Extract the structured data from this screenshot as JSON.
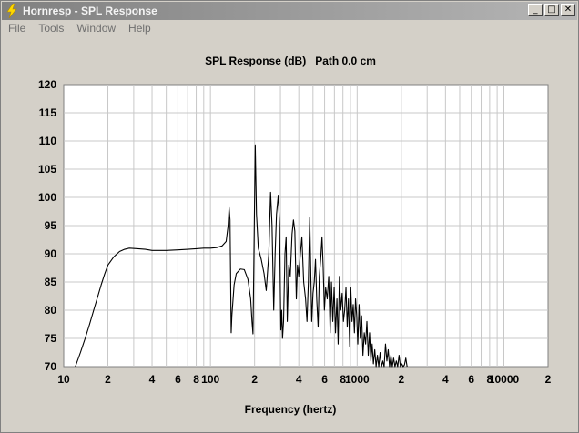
{
  "window": {
    "title": "Hornresp - SPL Response",
    "minimize_glyph": "_",
    "maximize_glyph": "□",
    "close_glyph": "✕"
  },
  "menu": [
    {
      "label": "File"
    },
    {
      "label": "Tools"
    },
    {
      "label": "Window"
    },
    {
      "label": "Help"
    }
  ],
  "icons": {
    "app": "lightning-bolt-icon"
  },
  "colors": {
    "plot_background": "#ffffff",
    "grid": "#c8c8c8",
    "trace": "#000000",
    "titlebar": "#a0a0a0"
  },
  "chart_data": {
    "type": "line",
    "title": "SPL Response (dB)   Path 0.0 cm",
    "xlabel": "Frequency (hertz)",
    "ylabel": "",
    "x_scale": "log",
    "xlim": [
      10,
      20000
    ],
    "ylim": [
      70,
      120
    ],
    "grid": true,
    "x_ticks": [
      {
        "value": 10,
        "label": "10"
      },
      {
        "value": 20,
        "label": "2"
      },
      {
        "value": 40,
        "label": "4"
      },
      {
        "value": 60,
        "label": "6"
      },
      {
        "value": 80,
        "label": "8"
      },
      {
        "value": 100,
        "label": "100"
      },
      {
        "value": 200,
        "label": "2"
      },
      {
        "value": 400,
        "label": "4"
      },
      {
        "value": 600,
        "label": "6"
      },
      {
        "value": 800,
        "label": "8"
      },
      {
        "value": 1000,
        "label": "1000"
      },
      {
        "value": 2000,
        "label": "2"
      },
      {
        "value": 4000,
        "label": "4"
      },
      {
        "value": 6000,
        "label": "6"
      },
      {
        "value": 8000,
        "label": "8"
      },
      {
        "value": 10000,
        "label": "10000"
      },
      {
        "value": 20000,
        "label": "2"
      }
    ],
    "y_ticks": [
      120,
      115,
      110,
      105,
      100,
      95,
      90,
      85,
      80,
      75,
      70
    ],
    "series": [
      {
        "points": [
          [
            12,
            70
          ],
          [
            13,
            72.5
          ],
          [
            14,
            75
          ],
          [
            15,
            77.5
          ],
          [
            16,
            80
          ],
          [
            17,
            82.3
          ],
          [
            18,
            84.5
          ],
          [
            19,
            86.4
          ],
          [
            20,
            88
          ],
          [
            22,
            89.5
          ],
          [
            24,
            90.4
          ],
          [
            26,
            90.8
          ],
          [
            28,
            91
          ],
          [
            32,
            90.9
          ],
          [
            36,
            90.8
          ],
          [
            40,
            90.6
          ],
          [
            50,
            90.6
          ],
          [
            60,
            90.7
          ],
          [
            70,
            90.8
          ],
          [
            80,
            90.9
          ],
          [
            90,
            91
          ],
          [
            100,
            91
          ],
          [
            110,
            91.1
          ],
          [
            120,
            91.4
          ],
          [
            128,
            92.2
          ],
          [
            132,
            95
          ],
          [
            134,
            98.2
          ],
          [
            136,
            96
          ],
          [
            137.5,
            84
          ],
          [
            138.5,
            76
          ],
          [
            140,
            79
          ],
          [
            145,
            84.5
          ],
          [
            150,
            86.5
          ],
          [
            160,
            87.3
          ],
          [
            170,
            87.2
          ],
          [
            180,
            85.5
          ],
          [
            188,
            82
          ],
          [
            192,
            78
          ],
          [
            195,
            75.8
          ],
          [
            198,
            90
          ],
          [
            202,
            109.3
          ],
          [
            206,
            97
          ],
          [
            212,
            91
          ],
          [
            222,
            89
          ],
          [
            232,
            86.5
          ],
          [
            240,
            83.5
          ],
          [
            250,
            90
          ],
          [
            257,
            100.9
          ],
          [
            263,
            95
          ],
          [
            270,
            80
          ],
          [
            276,
            90
          ],
          [
            282,
            97
          ],
          [
            290,
            100.4
          ],
          [
            296,
            95
          ],
          [
            300,
            82
          ],
          [
            302,
            76.5
          ],
          [
            306,
            80
          ],
          [
            310,
            75
          ],
          [
            315,
            78
          ],
          [
            322,
            90
          ],
          [
            328,
            93
          ],
          [
            334,
            78
          ],
          [
            342,
            88
          ],
          [
            350,
            86
          ],
          [
            360,
            93.5
          ],
          [
            368,
            96
          ],
          [
            376,
            94
          ],
          [
            385,
            82
          ],
          [
            392,
            88
          ],
          [
            400,
            86
          ],
          [
            410,
            90
          ],
          [
            420,
            93
          ],
          [
            432,
            85
          ],
          [
            445,
            82
          ],
          [
            455,
            78
          ],
          [
            465,
            85
          ],
          [
            475,
            96.5
          ],
          [
            482,
            88
          ],
          [
            490,
            78
          ],
          [
            500,
            83
          ],
          [
            510,
            85
          ],
          [
            520,
            89
          ],
          [
            530,
            82
          ],
          [
            542,
            77
          ],
          [
            552,
            86
          ],
          [
            564,
            89
          ],
          [
            576,
            93
          ],
          [
            586,
            88
          ],
          [
            598,
            80
          ],
          [
            610,
            84
          ],
          [
            625,
            82
          ],
          [
            640,
            86
          ],
          [
            655,
            76
          ],
          [
            668,
            85
          ],
          [
            682,
            78
          ],
          [
            697,
            84
          ],
          [
            712,
            76
          ],
          [
            728,
            82
          ],
          [
            742,
            74
          ],
          [
            757,
            86
          ],
          [
            773,
            80
          ],
          [
            790,
            83
          ],
          [
            806,
            78
          ],
          [
            822,
            80
          ],
          [
            839,
            84
          ],
          [
            856,
            77
          ],
          [
            872,
            82
          ],
          [
            890,
            73.5
          ],
          [
            905,
            84
          ],
          [
            922,
            78
          ],
          [
            940,
            81
          ],
          [
            958,
            76
          ],
          [
            975,
            82
          ],
          [
            993,
            79
          ],
          [
            1010,
            74
          ],
          [
            1030,
            81
          ],
          [
            1050,
            75
          ],
          [
            1072,
            79
          ],
          [
            1095,
            72
          ],
          [
            1118,
            76
          ],
          [
            1142,
            74
          ],
          [
            1165,
            78
          ],
          [
            1190,
            72
          ],
          [
            1215,
            76
          ],
          [
            1240,
            71
          ],
          [
            1265,
            74
          ],
          [
            1290,
            70.5
          ],
          [
            1318,
            73
          ],
          [
            1346,
            70
          ],
          [
            1375,
            72
          ],
          [
            1404,
            70
          ],
          [
            1434,
            72.5
          ],
          [
            1464,
            70
          ],
          [
            1495,
            71
          ],
          [
            1527,
            70
          ],
          [
            1560,
            74
          ],
          [
            1594,
            71
          ],
          [
            1628,
            73
          ],
          [
            1663,
            70
          ],
          [
            1699,
            72
          ],
          [
            1735,
            70
          ],
          [
            1772,
            71.5
          ],
          [
            1810,
            70
          ],
          [
            1849,
            71
          ],
          [
            1889,
            70
          ],
          [
            1930,
            72
          ],
          [
            1972,
            70
          ],
          [
            2014,
            70.5
          ],
          [
            2057,
            70
          ],
          [
            2100,
            70.3
          ],
          [
            2145,
            71.5
          ],
          [
            2190,
            70
          ]
        ]
      }
    ]
  }
}
